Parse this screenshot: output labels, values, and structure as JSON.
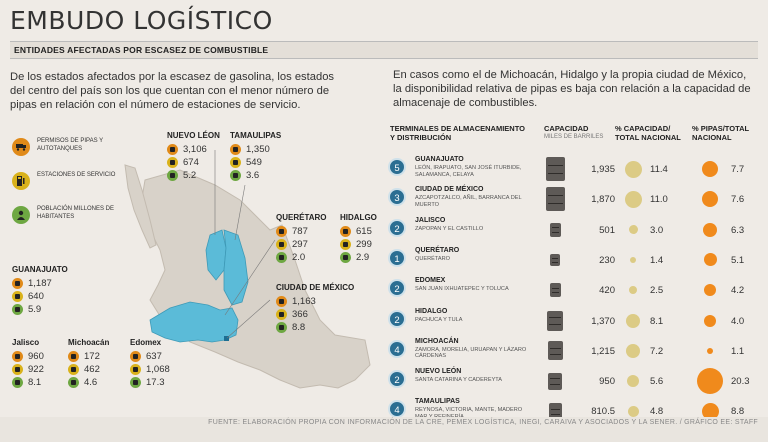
{
  "title": "EMBUDO LOGÍSTICO",
  "subtitle": "ENTIDADES AFECTADAS POR ESCASEZ DE COMBUSTIBLE",
  "intro_left": "De los estados afectados por la escasez de gasolina, los estados del centro del país son los que cuentan con el menor número de pipas en relación con el número de estaciones de servicio.",
  "intro_right": "En casos como el de Michoacán, Hidalgo y la propia ciudad de México, la disponibilidad relativa de pipas es baja con relación a la capacidad de almacenaje de combustibles.",
  "legend": [
    {
      "icon": "tanker-truck-icon",
      "label": "PERMISOS DE PIPAS Y AUTOTANQUES"
    },
    {
      "icon": "fuel-pump-icon",
      "label": "ESTACIONES DE SERVICIO"
    },
    {
      "icon": "person-icon",
      "label": "POBLACIÓN MILLONES DE HABITANTES"
    }
  ],
  "states": [
    {
      "name": "NUEVO LÉON",
      "pipas": "3,106",
      "estaciones": "674",
      "poblacion": "5.2"
    },
    {
      "name": "TAMAULIPAS",
      "pipas": "1,350",
      "estaciones": "549",
      "poblacion": "3.6"
    },
    {
      "name": "QUERÉTARO",
      "pipas": "787",
      "estaciones": "297",
      "poblacion": "2.0"
    },
    {
      "name": "HIDALGO",
      "pipas": "615",
      "estaciones": "299",
      "poblacion": "2.9"
    },
    {
      "name": "CIUDAD DE MÉXICO",
      "pipas": "1,163",
      "estaciones": "366",
      "poblacion": "8.8"
    },
    {
      "name": "GUANAJUATO",
      "pipas": "1,187",
      "estaciones": "640",
      "poblacion": "5.9"
    },
    {
      "name": "Jalisco",
      "pipas": "960",
      "estaciones": "922",
      "poblacion": "8.1"
    },
    {
      "name": "Michoacán",
      "pipas": "172",
      "estaciones": "462",
      "poblacion": "4.6"
    },
    {
      "name": "Edomex",
      "pipas": "637",
      "estaciones": "1,068",
      "poblacion": "17.3"
    }
  ],
  "table_headers": {
    "terminales": "TERMINALES DE ALMACENAMIENTO Y DISTRIBUCIÓN",
    "capacidad": "CAPACIDAD",
    "capacidad_sub": "MILES DE BARRILES",
    "pct_capacidad": "% CAPACIDAD/ TOTAL NACIONAL",
    "pct_pipas": "% PIPAS/TOTAL NACIONAL"
  },
  "table_rows": [
    {
      "n": "5",
      "state": "GUANAJUATO",
      "cities": "LEÓN, IRAPUATO, SAN JOSÉ ITURBIDE, SALAMANCA, CELAYA",
      "capacidad": "1,935",
      "cap_value": 1935,
      "pct_cap": "11.4",
      "pct_cap_value": 11.4,
      "pct_pipas": "7.7",
      "pct_pipas_value": 7.7
    },
    {
      "n": "3",
      "state": "CIUDAD DE MÉXICO",
      "cities": "AZCAPOTZALCO, AÑIL, BARRANCA DEL MUERTO",
      "capacidad": "1,870",
      "cap_value": 1870,
      "pct_cap": "11.0",
      "pct_cap_value": 11.0,
      "pct_pipas": "7.6",
      "pct_pipas_value": 7.6
    },
    {
      "n": "2",
      "state": "JALISCO",
      "cities": "ZAPOPAN Y EL CASTILLO",
      "capacidad": "501",
      "cap_value": 501,
      "pct_cap": "3.0",
      "pct_cap_value": 3.0,
      "pct_pipas": "6.3",
      "pct_pipas_value": 6.3
    },
    {
      "n": "1",
      "state": "QUERÉTARO",
      "cities": "QUERÉTARO",
      "capacidad": "230",
      "cap_value": 230,
      "pct_cap": "1.4",
      "pct_cap_value": 1.4,
      "pct_pipas": "5.1",
      "pct_pipas_value": 5.1
    },
    {
      "n": "2",
      "state": "EDOMEX",
      "cities": "SAN JUAN IXHUATEPEC Y TOLUCA",
      "capacidad": "420",
      "cap_value": 420,
      "pct_cap": "2.5",
      "pct_cap_value": 2.5,
      "pct_pipas": "4.2",
      "pct_pipas_value": 4.2
    },
    {
      "n": "2",
      "state": "HIDALGO",
      "cities": "PACHUCA Y TULA",
      "capacidad": "1,370",
      "cap_value": 1370,
      "pct_cap": "8.1",
      "pct_cap_value": 8.1,
      "pct_pipas": "4.0",
      "pct_pipas_value": 4.0
    },
    {
      "n": "4",
      "state": "MICHOACÁN",
      "cities": "ZAMORA, MORELIA, URUAPAN Y LÁZARO CÁRDENAS",
      "capacidad": "1,215",
      "cap_value": 1215,
      "pct_cap": "7.2",
      "pct_cap_value": 7.2,
      "pct_pipas": "1.1",
      "pct_pipas_value": 1.1
    },
    {
      "n": "2",
      "state": "NUEVO LEÓN",
      "cities": "SANTA CATARINA Y CADEREYTA",
      "capacidad": "950",
      "cap_value": 950,
      "pct_cap": "5.6",
      "pct_cap_value": 5.6,
      "pct_pipas": "20.3",
      "pct_pipas_value": 20.3
    },
    {
      "n": "4",
      "state": "TAMAULIPAS",
      "cities": "REYNOSA, VICTORIA, MANTE, MADERO MAR Y REFINERÍA",
      "capacidad": "810.5",
      "cap_value": 810.5,
      "pct_cap": "4.8",
      "pct_cap_value": 4.8,
      "pct_pipas": "8.8",
      "pct_pipas_value": 8.8
    }
  ],
  "source": "FUENTE: ELABORACIÓN PROPIA CON INFORMACIÓN DE LA CRE, PEMEX LOGÍSTICA, INEGI, CARAIVA Y ASOCIADOS Y LA SENER. / GRÁFICO EE: STAFF",
  "colors": {
    "highlight_state": "#5bbbd8",
    "map_base": "#d5d0c7",
    "badge": "#2b6e92",
    "capacity_circle": "#dccb85",
    "pipas_circle": "#f08a1c"
  }
}
